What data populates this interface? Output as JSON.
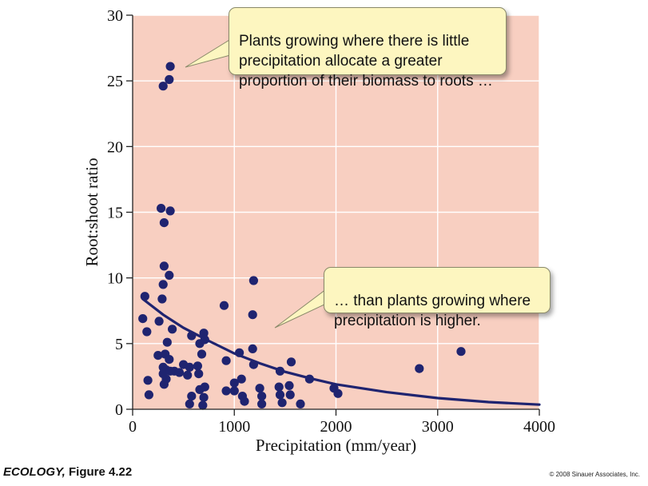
{
  "chart_data": {
    "type": "scatter",
    "title": "",
    "xlabel": "Precipitation (mm/year)",
    "ylabel": "Root:shoot ratio",
    "xlim": [
      0,
      4000
    ],
    "ylim": [
      0,
      30
    ],
    "xticks": [
      "0",
      "1000",
      "2000",
      "3000",
      "4000"
    ],
    "yticks": [
      "0",
      "5",
      "10",
      "15",
      "20",
      "25",
      "30"
    ],
    "grid": true,
    "legend": "none",
    "point_color": "#1f2470",
    "curve_color": "#1f2470",
    "background_color": "#f8cfc1",
    "points": [
      [
        370,
        26.1
      ],
      [
        360,
        25.1
      ],
      [
        300,
        24.6
      ],
      [
        280,
        15.3
      ],
      [
        370,
        15.1
      ],
      [
        310,
        14.2
      ],
      [
        310,
        10.9
      ],
      [
        360,
        10.2
      ],
      [
        300,
        9.5
      ],
      [
        290,
        8.4
      ],
      [
        120,
        8.6
      ],
      [
        100,
        6.9
      ],
      [
        260,
        6.7
      ],
      [
        140,
        5.9
      ],
      [
        390,
        6.1
      ],
      [
        580,
        5.6
      ],
      [
        700,
        5.8
      ],
      [
        710,
        5.3
      ],
      [
        660,
        5.0
      ],
      [
        340,
        5.1
      ],
      [
        250,
        4.1
      ],
      [
        320,
        4.2
      ],
      [
        680,
        4.2
      ],
      [
        360,
        3.8
      ],
      [
        500,
        3.4
      ],
      [
        560,
        3.2
      ],
      [
        640,
        3.3
      ],
      [
        300,
        3.2
      ],
      [
        330,
        3.0
      ],
      [
        410,
        2.9
      ],
      [
        460,
        2.8
      ],
      [
        300,
        2.7
      ],
      [
        370,
        2.9
      ],
      [
        540,
        2.6
      ],
      [
        650,
        2.7
      ],
      [
        330,
        2.3
      ],
      [
        310,
        1.9
      ],
      [
        150,
        2.2
      ],
      [
        160,
        1.1
      ],
      [
        660,
        1.5
      ],
      [
        710,
        1.7
      ],
      [
        580,
        1.0
      ],
      [
        700,
        0.9
      ],
      [
        560,
        0.4
      ],
      [
        690,
        0.3
      ],
      [
        900,
        7.9
      ],
      [
        920,
        3.7
      ],
      [
        1050,
        4.3
      ],
      [
        1180,
        4.6
      ],
      [
        1190,
        9.8
      ],
      [
        1180,
        7.2
      ],
      [
        1190,
        3.4
      ],
      [
        1000,
        2.0
      ],
      [
        1070,
        2.3
      ],
      [
        1000,
        1.4
      ],
      [
        920,
        1.4
      ],
      [
        1080,
        1.0
      ],
      [
        1100,
        0.6
      ],
      [
        1250,
        1.6
      ],
      [
        1270,
        1.0
      ],
      [
        1270,
        0.4
      ],
      [
        1450,
        2.9
      ],
      [
        1440,
        1.7
      ],
      [
        1450,
        1.1
      ],
      [
        1560,
        3.6
      ],
      [
        1540,
        1.8
      ],
      [
        1550,
        1.1
      ],
      [
        1470,
        0.5
      ],
      [
        1650,
        0.4
      ],
      [
        1740,
        2.3
      ],
      [
        1980,
        1.6
      ],
      [
        2020,
        1.2
      ],
      [
        2820,
        3.1
      ],
      [
        3230,
        4.4
      ]
    ],
    "curve": [
      [
        100,
        8.4
      ],
      [
        300,
        7.2
      ],
      [
        500,
        6.2
      ],
      [
        750,
        5.2
      ],
      [
        1000,
        4.25
      ],
      [
        1250,
        3.5
      ],
      [
        1500,
        2.85
      ],
      [
        1750,
        2.35
      ],
      [
        2000,
        1.9
      ],
      [
        2500,
        1.3
      ],
      [
        3000,
        0.85
      ],
      [
        3500,
        0.55
      ],
      [
        4000,
        0.35
      ]
    ],
    "annotations": [
      {
        "text": "Plants growing where there is little\nprecipitation allocate a greater\nproportion of their biomass to roots …"
      },
      {
        "text": "… than plants growing where\nprecipitation is higher."
      }
    ]
  },
  "caption": {
    "book": "ECOLOGY,",
    "figure": "Figure 4.22"
  },
  "copyright": "© 2008 Sinauer Associates, Inc."
}
